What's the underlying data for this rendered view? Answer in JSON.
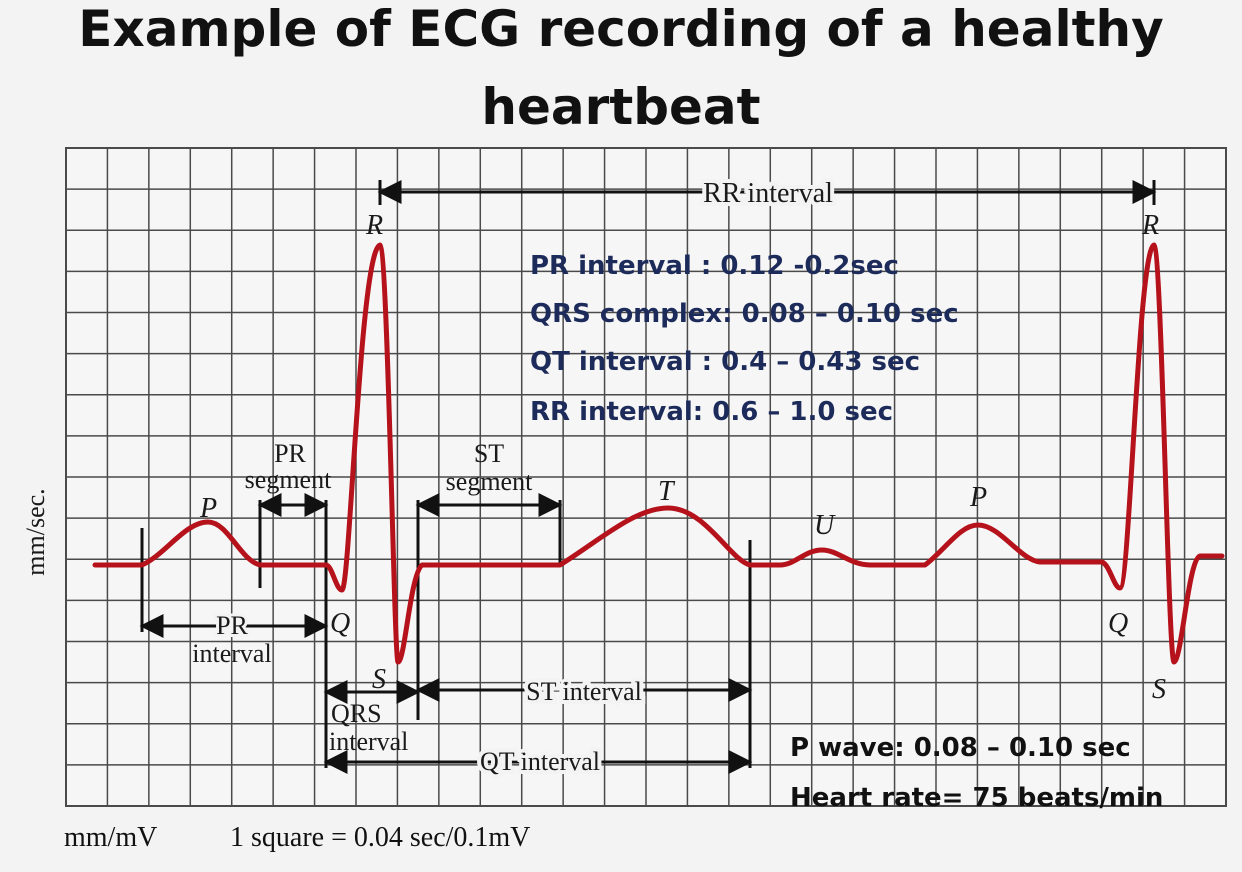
{
  "title": {
    "line1": "Example of ECG recording of a healthy",
    "line2": "heartbeat"
  },
  "axis": {
    "y_label": "mm/sec."
  },
  "footer": {
    "units": "mm/mV",
    "scale": "1 square = 0.04 sec/0.1mV"
  },
  "waves": {
    "p1": "P",
    "r1": "R",
    "q1": "Q",
    "s1": "S",
    "t": "T",
    "u": "U",
    "p2": "P",
    "r2": "R",
    "q2": "Q",
    "s2": "S"
  },
  "intervals": {
    "rr": "RR interval",
    "pr_seg_line1": "PR",
    "pr_seg_line2": "segment",
    "st_seg_line1": "ST",
    "st_seg_line2": "segment",
    "pr_int_line1": "PR",
    "pr_int_line2": "interval",
    "qrs_line1": "QRS",
    "qrs_line2": "interval",
    "st_interval": "ST interval",
    "qt_interval": "QT interval"
  },
  "info": {
    "pr": "PR interval : 0.12 -0.2sec",
    "qrs": "QRS complex: 0.08 – 0.10 sec",
    "qt": "QT interval : 0.4 – 0.43 sec",
    "rr": "RR interval: 0.6 – 1.0 sec",
    "p_wave": "P wave: 0.08 – 0.10 sec",
    "heart_rate": "Heart rate= 75 beats/min"
  },
  "colors": {
    "trace": "#b5121b",
    "grid": "#4a4a4a",
    "info_text": "#1c2b5a"
  }
}
